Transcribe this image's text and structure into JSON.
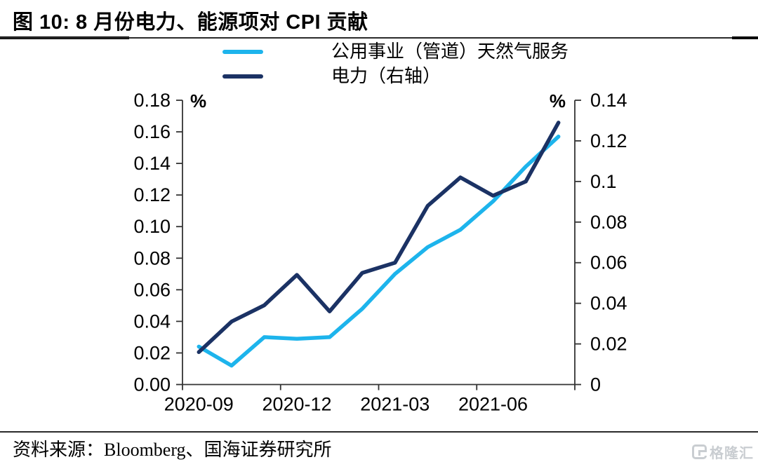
{
  "header": {
    "title": "图 10:  8 月份电力、能源项对 CPI 贡献"
  },
  "footer": {
    "source": "资料来源：Bloomberg、国海证券研究所",
    "watermark": "格隆汇"
  },
  "chart_data": {
    "type": "line",
    "title": "8 月份电力、能源项对 CPI 贡献",
    "categories": [
      "2020-09",
      "2020-10",
      "2020-11",
      "2020-12",
      "2021-01",
      "2021-02",
      "2021-03",
      "2021-04",
      "2021-05",
      "2021-06",
      "2021-07",
      "2021-08"
    ],
    "x_tick_labels": [
      "2020-09",
      "2020-12",
      "2021-03",
      "2021-06"
    ],
    "x_label_every": 3,
    "grid": false,
    "legend_position": "top",
    "series": [
      {
        "name": "公用事业（管道）天然气服务",
        "axis": "left",
        "color": "#1db4ec",
        "values": [
          0.024,
          0.012,
          0.03,
          0.029,
          0.03,
          0.048,
          0.07,
          0.087,
          0.098,
          0.116,
          0.138,
          0.157
        ]
      },
      {
        "name": "电力（右轴）",
        "axis": "right",
        "color": "#1b3264",
        "values": [
          0.016,
          0.031,
          0.039,
          0.054,
          0.036,
          0.055,
          0.06,
          0.088,
          0.102,
          0.093,
          0.1,
          0.129
        ]
      }
    ],
    "left_axis": {
      "label": "%",
      "min": 0,
      "max": 0.18,
      "step": 0.02,
      "tick_labels": [
        "0.18",
        "0.16",
        "0.14",
        "0.12",
        "0.10",
        "0.08",
        "0.06",
        "0.04",
        "0.02",
        "0.00"
      ]
    },
    "right_axis": {
      "label": "%",
      "min": 0,
      "max": 0.14,
      "step": 0.02,
      "tick_labels": [
        "0.14",
        "0.12",
        "0.1",
        "0.08",
        "0.06",
        "0.04",
        "0.02",
        "0"
      ]
    },
    "axis_color": "#333333"
  }
}
